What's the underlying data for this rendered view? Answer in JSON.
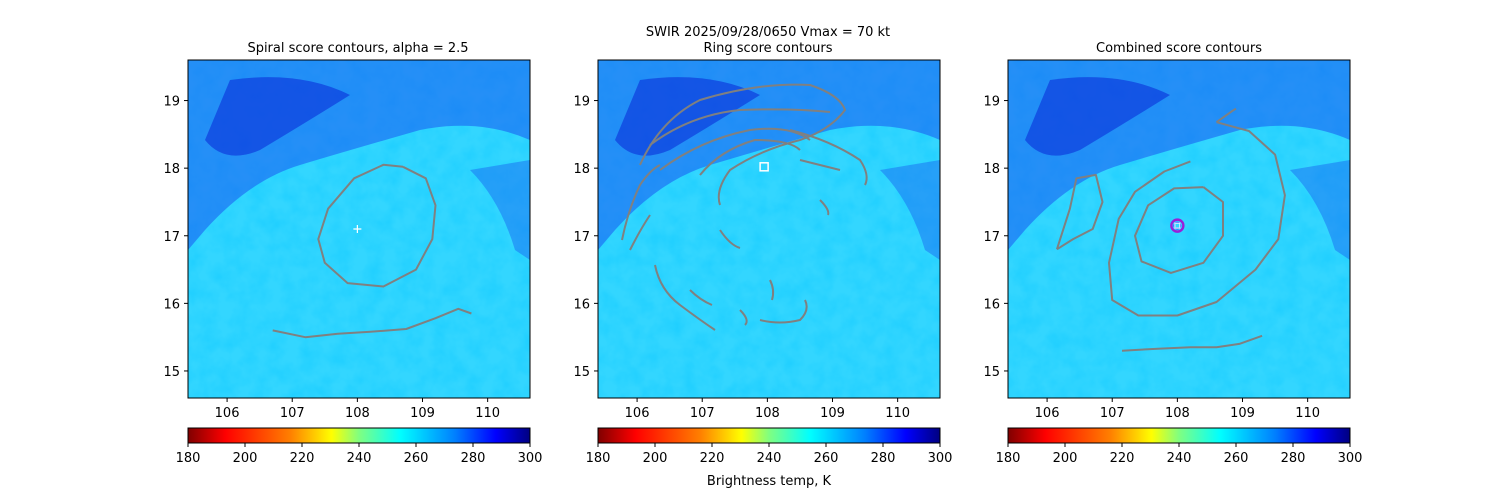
{
  "suptitle": {
    "line1": "SWIR  2025/09/28/0650    Vmax = 70 kt",
    "line2": "Ring score contours"
  },
  "colors": {
    "contour": "#808080",
    "marker_white": "#ffffff",
    "ring_purple": "#9a1fd8",
    "ring_blue": "#1f3cff",
    "colormap": [
      "#800000",
      "#ff0000",
      "#ff8000",
      "#ffff00",
      "#80ff80",
      "#00ffff",
      "#0080ff",
      "#0000ff",
      "#000080"
    ]
  },
  "chart_data": [
    {
      "type": "heatmap",
      "title": "Spiral score contours, alpha =  2.5",
      "xlim": [
        105.4,
        110.65
      ],
      "ylim": [
        14.6,
        19.6
      ],
      "xticks": [
        "106",
        "107",
        "108",
        "109",
        "110"
      ],
      "yticks": [
        "15",
        "16",
        "17",
        "18",
        "19"
      ],
      "colorbar": {
        "ticks": [
          "180",
          "200",
          "220",
          "240",
          "260",
          "280",
          "300"
        ],
        "range": [
          180,
          300
        ],
        "label": ""
      },
      "marker": {
        "shape": "plus",
        "x": 108.0,
        "y": 17.1
      },
      "contours": [
        [
          [
            108.7,
            18.02
          ],
          [
            109.05,
            17.85
          ],
          [
            109.2,
            17.45
          ],
          [
            109.15,
            16.95
          ],
          [
            108.9,
            16.5
          ],
          [
            108.4,
            16.25
          ],
          [
            107.85,
            16.3
          ],
          [
            107.5,
            16.6
          ],
          [
            107.4,
            16.95
          ],
          [
            107.55,
            17.4
          ],
          [
            107.95,
            17.85
          ],
          [
            108.4,
            18.05
          ],
          [
            108.7,
            18.02
          ]
        ],
        [
          [
            106.7,
            15.6
          ],
          [
            107.2,
            15.5
          ],
          [
            107.7,
            15.55
          ],
          [
            108.2,
            15.58
          ],
          [
            108.75,
            15.62
          ],
          [
            109.2,
            15.78
          ],
          [
            109.55,
            15.92
          ],
          [
            109.75,
            15.85
          ]
        ]
      ]
    },
    {
      "type": "heatmap",
      "title": "Ring score contours",
      "xlim": [
        105.4,
        110.65
      ],
      "ylim": [
        14.6,
        19.6
      ],
      "xticks": [
        "106",
        "107",
        "108",
        "109",
        "110"
      ],
      "yticks": [
        "15",
        "16",
        "17",
        "18",
        "19"
      ],
      "colorbar": {
        "ticks": [
          "180",
          "200",
          "220",
          "240",
          "260",
          "280",
          "300"
        ],
        "range": [
          180,
          300
        ],
        "label": "Brightness temp, K"
      },
      "marker": {
        "shape": "square",
        "x": 107.95,
        "y": 18.02
      }
    },
    {
      "type": "heatmap",
      "title": "Combined score contours",
      "xlim": [
        105.4,
        110.65
      ],
      "ylim": [
        14.6,
        19.6
      ],
      "xticks": [
        "106",
        "107",
        "108",
        "109",
        "110"
      ],
      "yticks": [
        "15",
        "16",
        "17",
        "18",
        "19"
      ],
      "colorbar": {
        "ticks": [
          "180",
          "200",
          "220",
          "240",
          "260",
          "280",
          "300"
        ],
        "range": [
          180,
          300
        ],
        "label": ""
      },
      "marker": {
        "shape": "circle",
        "x": 108.0,
        "y": 17.15
      },
      "contours": [
        [
          [
            108.4,
            17.72
          ],
          [
            108.7,
            17.5
          ],
          [
            108.7,
            17.0
          ],
          [
            108.4,
            16.6
          ],
          [
            107.9,
            16.45
          ],
          [
            107.45,
            16.62
          ],
          [
            107.35,
            17.0
          ],
          [
            107.55,
            17.45
          ],
          [
            107.95,
            17.7
          ],
          [
            108.4,
            17.72
          ]
        ],
        [
          [
            108.6,
            18.68
          ],
          [
            109.1,
            18.55
          ],
          [
            109.5,
            18.2
          ],
          [
            109.65,
            17.6
          ],
          [
            109.55,
            16.95
          ],
          [
            109.2,
            16.5
          ],
          [
            108.6,
            16.02
          ],
          [
            108.0,
            15.82
          ],
          [
            107.4,
            15.82
          ],
          [
            107.0,
            16.05
          ],
          [
            106.95,
            16.6
          ],
          [
            107.1,
            17.25
          ],
          [
            107.35,
            17.65
          ],
          [
            107.8,
            17.95
          ],
          [
            108.2,
            18.1
          ]
        ],
        [
          [
            106.15,
            16.8
          ],
          [
            106.35,
            17.4
          ],
          [
            106.45,
            17.85
          ],
          [
            106.75,
            17.9
          ],
          [
            106.85,
            17.5
          ],
          [
            106.7,
            17.1
          ],
          [
            106.4,
            16.95
          ],
          [
            106.15,
            16.8
          ]
        ],
        [
          [
            108.6,
            18.68
          ],
          [
            108.85,
            18.85
          ],
          [
            108.9,
            18.88
          ]
        ],
        [
          [
            107.15,
            15.3
          ],
          [
            107.7,
            15.33
          ],
          [
            108.2,
            15.35
          ],
          [
            108.6,
            15.35
          ],
          [
            108.95,
            15.4
          ],
          [
            109.3,
            15.52
          ]
        ]
      ]
    }
  ]
}
